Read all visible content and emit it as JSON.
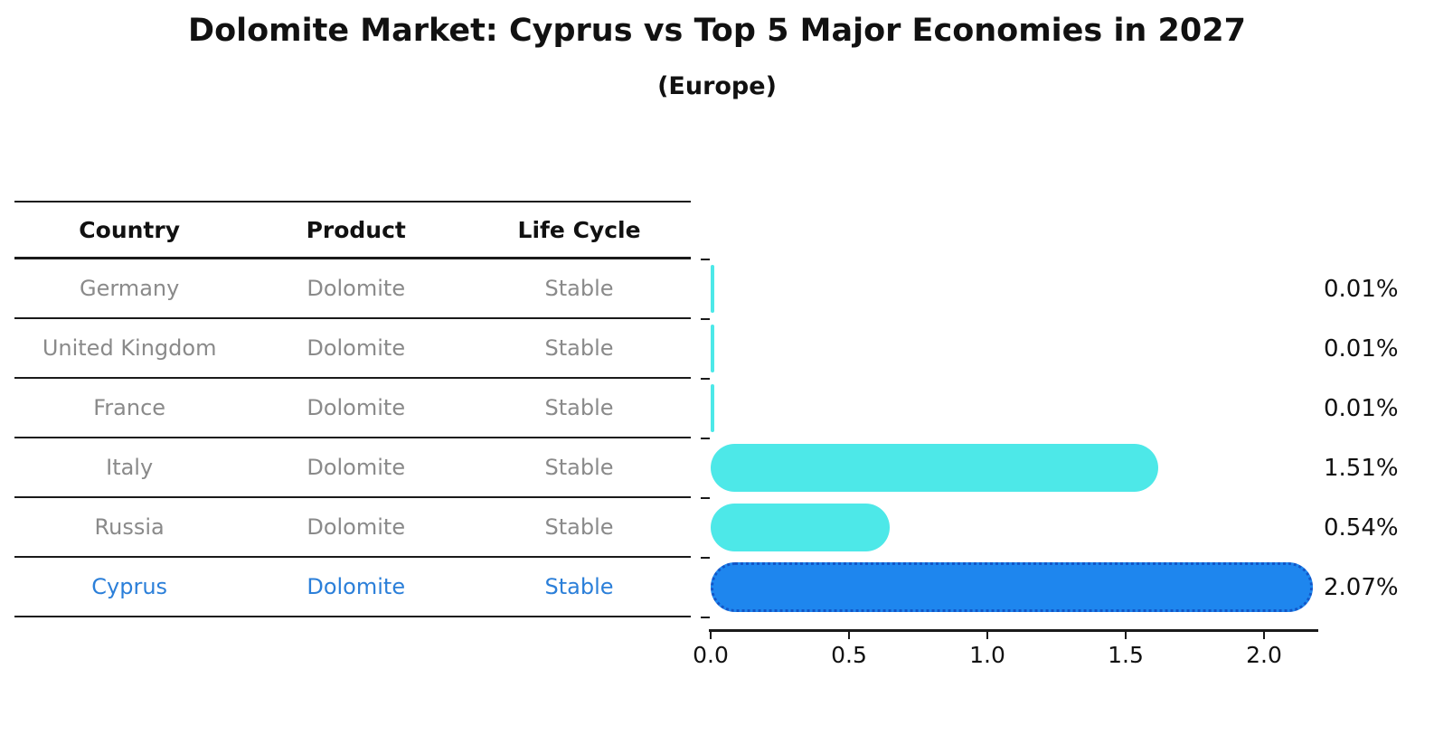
{
  "title": "Dolomite Market: Cyprus vs Top 5 Major Economies in 2027",
  "subtitle": "(Europe)",
  "table": {
    "headers": [
      "Country",
      "Product",
      "Life Cycle"
    ],
    "rows": [
      {
        "country": "Germany",
        "product": "Dolomite",
        "life_cycle": "Stable",
        "highlight": false
      },
      {
        "country": "United Kingdom",
        "product": "Dolomite",
        "life_cycle": "Stable",
        "highlight": false
      },
      {
        "country": "France",
        "product": "Dolomite",
        "life_cycle": "Stable",
        "highlight": false
      },
      {
        "country": "Italy",
        "product": "Dolomite",
        "life_cycle": "Stable",
        "highlight": false
      },
      {
        "country": "Russia",
        "product": "Dolomite",
        "life_cycle": "Stable",
        "highlight": false
      },
      {
        "country": "Cyprus",
        "product": "Dolomite",
        "life_cycle": "Stable",
        "highlight": true
      }
    ]
  },
  "chart_data": {
    "type": "bar",
    "orientation": "horizontal",
    "title": "Dolomite Market: Cyprus vs Top 5 Major Economies in 2027",
    "subtitle": "(Europe)",
    "categories": [
      "Germany",
      "United Kingdom",
      "France",
      "Italy",
      "Russia",
      "Cyprus"
    ],
    "values": [
      0.01,
      0.01,
      0.01,
      1.51,
      0.54,
      2.07
    ],
    "value_labels": [
      "0.01%",
      "0.01%",
      "0.01%",
      "1.51%",
      "0.54%",
      "2.07%"
    ],
    "x_ticks": [
      "0.0",
      "0.5",
      "1.0",
      "1.5",
      "2.0"
    ],
    "xlim": [
      0,
      2.2
    ],
    "grid": false,
    "legend": false,
    "highlight_index": 5,
    "bar_color_default": "#4DE8E8",
    "bar_color_highlight": "#1E86EE",
    "highlight_border_color": "#1256C8"
  },
  "colors": {
    "row_text": "#8a8a8a",
    "highlight_text": "#2b7fd9",
    "header_text": "#111111",
    "axis": "#1a1a1a"
  }
}
